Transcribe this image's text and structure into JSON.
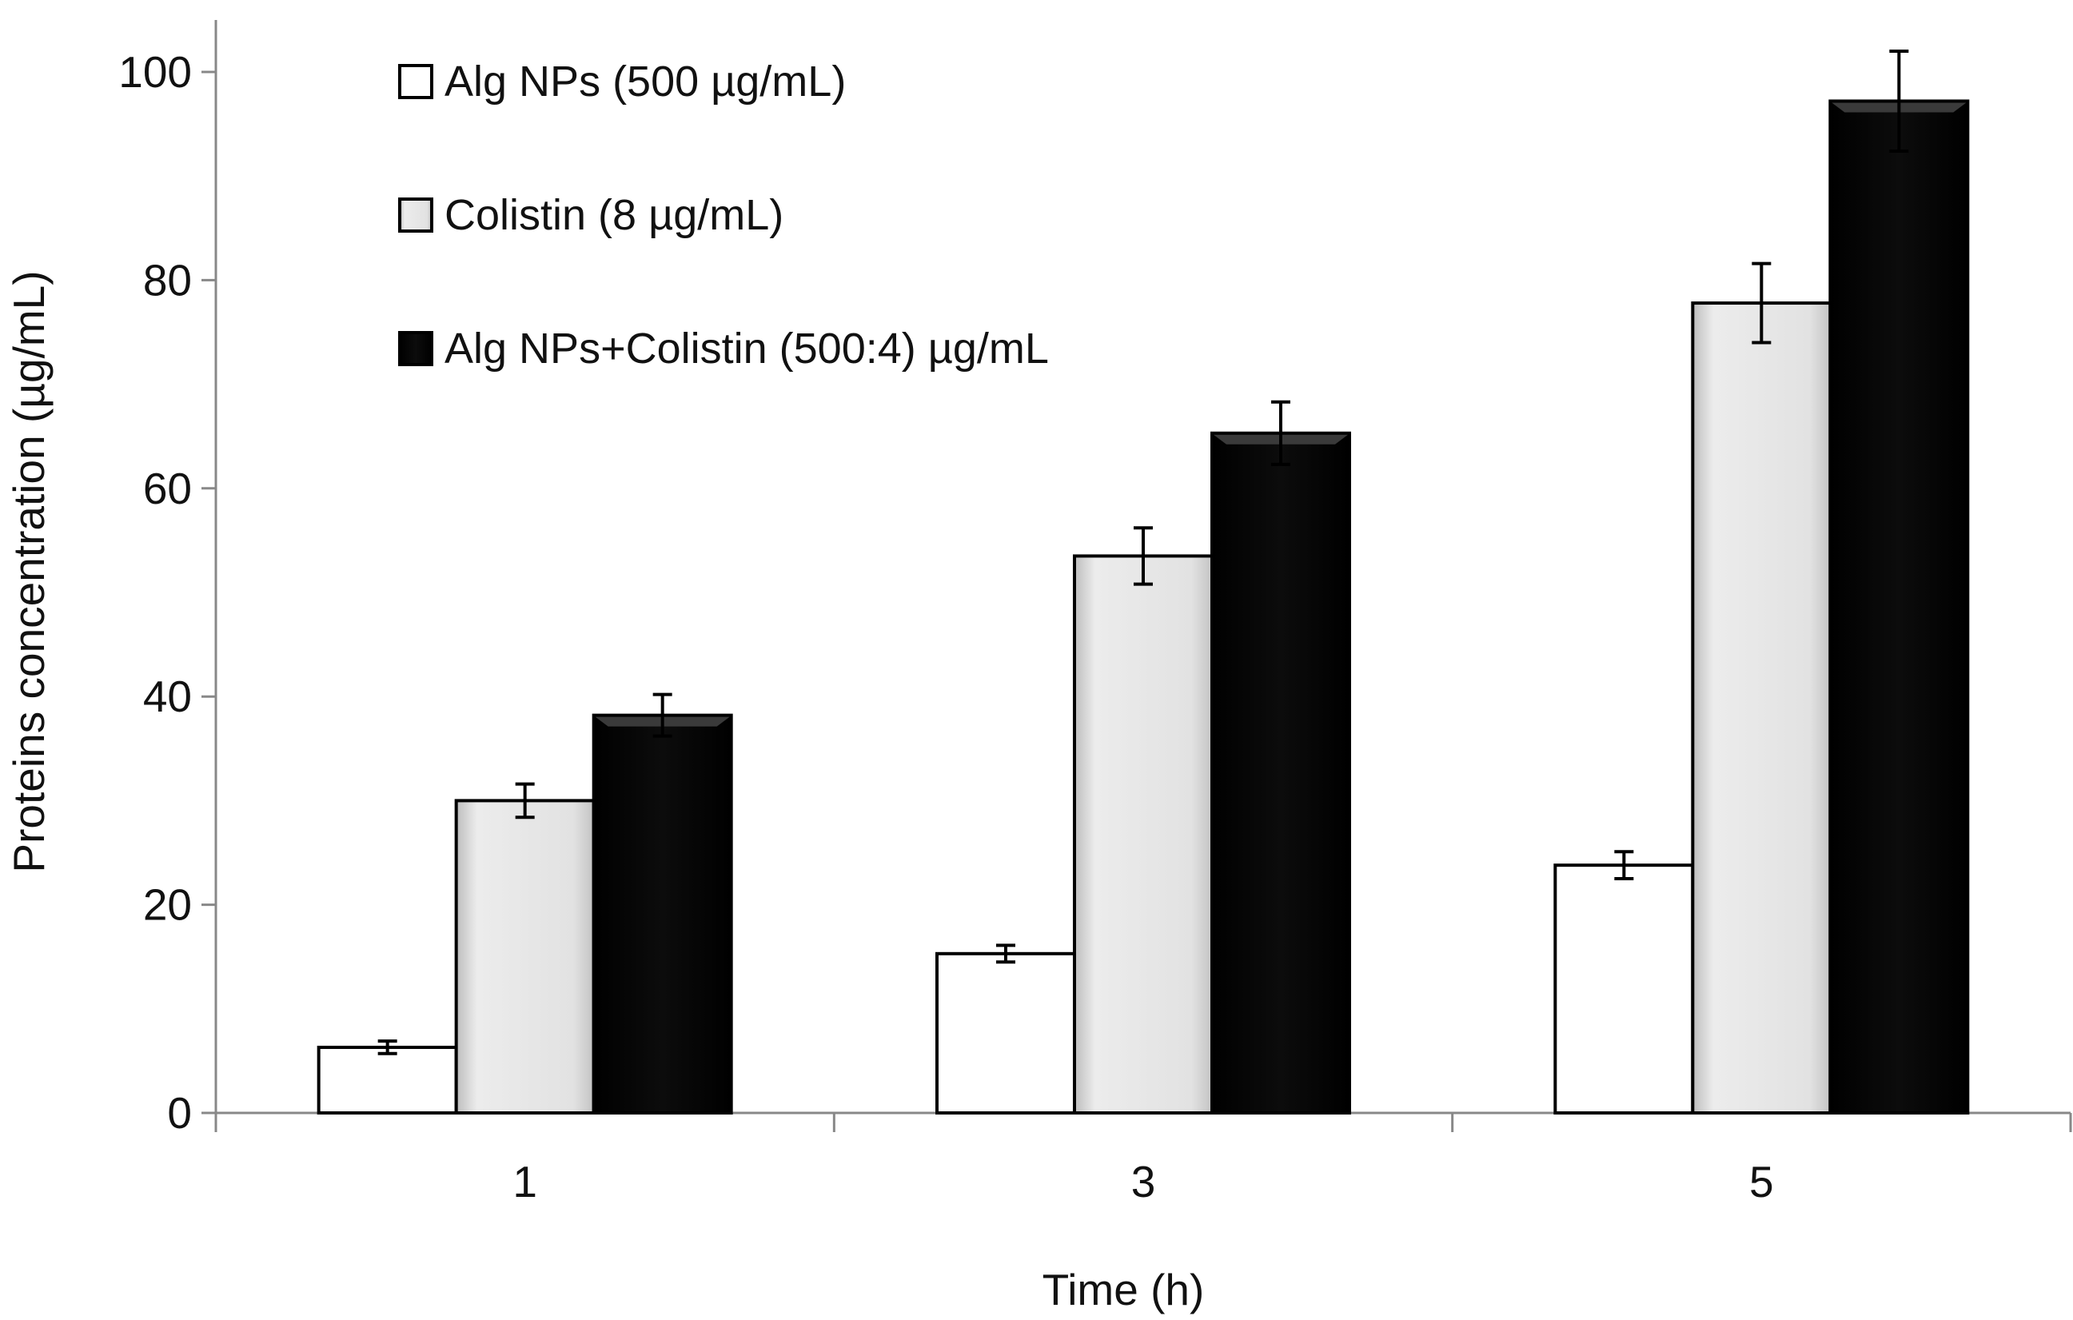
{
  "chart_data": {
    "type": "bar",
    "title": "",
    "xlabel": "Time (h)",
    "ylabel": "Proteins concentration (µg/mL)",
    "categories": [
      "1",
      "3",
      "5"
    ],
    "ylim": [
      0,
      100
    ],
    "yticks": [
      0,
      20,
      40,
      60,
      80,
      100
    ],
    "grid": false,
    "legend_position": "top-left",
    "series": [
      {
        "name": "Alg NPs (500 µg/mL)",
        "values": [
          6.3,
          15.3,
          23.8
        ],
        "errors": [
          0.6,
          0.8,
          1.3
        ],
        "color": "#ffffff"
      },
      {
        "name": "Colistin (8 µg/mL)",
        "values": [
          30.0,
          53.5,
          77.8
        ],
        "errors": [
          1.6,
          2.7,
          3.8
        ],
        "color": "#e0e0e0"
      },
      {
        "name": "Alg NPs+Colistin (500:4) µg/mL",
        "values": [
          38.2,
          65.3,
          97.2
        ],
        "errors": [
          2.0,
          3.0,
          4.8
        ],
        "color": "#050505"
      }
    ]
  }
}
